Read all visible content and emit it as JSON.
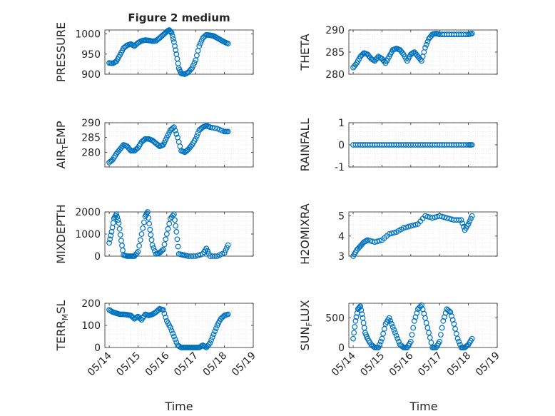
{
  "figure": {
    "title": "Figure 2 medium",
    "xlabel": "Time"
  },
  "style": {
    "marker_color": "#0072BD",
    "axis_color": "#262626",
    "grid_color": "#d9d9d9"
  },
  "chart_data": [
    {
      "type": "scatter",
      "ylabel": "PRESSURE",
      "ylabel_sub": "",
      "ylim": [
        900,
        1010
      ],
      "yticks": [
        "900",
        "950",
        "1000"
      ],
      "ytick_values": [
        900,
        950,
        1000
      ],
      "xlim": [
        "05/14",
        "05/18"
      ],
      "x": [
        "05/14 00:00",
        "05/14 03:00",
        "05/14 06:00",
        "05/14 09:00",
        "05/14 12:00",
        "05/14 15:00",
        "05/14 18:00",
        "05/14 21:00",
        "05/15 00:00",
        "05/15 03:00",
        "05/15 06:00",
        "05/15 09:00",
        "05/15 12:00",
        "05/15 15:00",
        "05/15 18:00",
        "05/15 21:00",
        "05/16 00:00",
        "05/16 02:00",
        "05/16 04:00",
        "05/16 06:00",
        "05/16 08:00",
        "05/16 10:00",
        "05/16 12:00",
        "05/16 15:00",
        "05/16 18:00",
        "05/16 21:00",
        "05/17 00:00",
        "05/17 03:00",
        "05/17 06:00",
        "05/17 09:00",
        "05/17 12:00",
        "05/17 15:00",
        "05/17 18:00",
        "05/17 21:00",
        "05/18 00:00",
        "05/18 03:00"
      ],
      "y": [
        928,
        927,
        932,
        948,
        965,
        972,
        975,
        970,
        978,
        983,
        985,
        984,
        982,
        983,
        990,
        998,
        1006,
        1010,
        1003,
        980,
        950,
        915,
        902,
        900,
        905,
        915,
        935,
        970,
        990,
        998,
        997,
        995,
        990,
        985,
        980,
        976
      ]
    },
    {
      "type": "scatter",
      "ylabel": "THETA",
      "ylabel_sub": "",
      "ylim": [
        280,
        290
      ],
      "yticks": [
        "280",
        "285",
        "290"
      ],
      "ytick_values": [
        280,
        285,
        290
      ],
      "xlim": [
        "05/14",
        "05/19"
      ],
      "x": [
        "05/14 00:00",
        "05/14 03:00",
        "05/14 06:00",
        "05/14 09:00",
        "05/14 12:00",
        "05/14 15:00",
        "05/14 18:00",
        "05/14 21:00",
        "05/15 00:00",
        "05/15 03:00",
        "05/15 06:00",
        "05/15 09:00",
        "05/15 12:00",
        "05/15 15:00",
        "05/15 18:00",
        "05/15 21:00",
        "05/16 00:00",
        "05/16 03:00",
        "05/16 06:00",
        "05/16 09:00",
        "05/16 12:00",
        "05/16 15:00",
        "05/16 18:00",
        "05/16 21:00",
        "05/17 00:00",
        "05/17 06:00",
        "05/17 12:00",
        "05/17 18:00",
        "05/18 00:00",
        "05/18 03:00"
      ],
      "y": [
        281.5,
        282.5,
        284,
        284.8,
        284.5,
        283.5,
        283,
        284,
        283.5,
        282.5,
        284,
        285.5,
        285.8,
        285.5,
        284.5,
        283,
        284.5,
        285,
        284,
        283,
        286,
        288,
        289,
        289.2,
        289,
        289,
        289,
        289,
        289,
        289.2
      ]
    },
    {
      "type": "scatter",
      "ylabel": "AIR",
      "ylabel_sub": "T",
      "ylabel_rest": "EMP",
      "ylim": [
        275,
        290
      ],
      "yticks": [
        "280",
        "285",
        "290"
      ],
      "ytick_values": [
        280,
        285,
        290
      ],
      "xlim": [
        "05/14",
        "05/18"
      ],
      "x": [
        "05/14 00:00",
        "05/14 03:00",
        "05/14 06:00",
        "05/14 09:00",
        "05/14 12:00",
        "05/14 15:00",
        "05/14 18:00",
        "05/14 21:00",
        "05/15 00:00",
        "05/15 03:00",
        "05/15 06:00",
        "05/15 09:00",
        "05/15 12:00",
        "05/15 15:00",
        "05/15 18:00",
        "05/15 21:00",
        "05/16 00:00",
        "05/16 03:00",
        "05/16 06:00",
        "05/16 09:00",
        "05/16 12:00",
        "05/16 15:00",
        "05/16 18:00",
        "05/16 21:00",
        "05/17 00:00",
        "05/17 03:00",
        "05/17 06:00",
        "05/17 09:00",
        "05/17 12:00",
        "05/17 18:00",
        "05/18 00:00",
        "05/18 03:00"
      ],
      "y": [
        276.5,
        277.5,
        279.5,
        281,
        282.5,
        282,
        280.5,
        280.5,
        281.5,
        283.5,
        284.5,
        284.5,
        284,
        283,
        282,
        282.5,
        285,
        287.5,
        288.5,
        285,
        280.5,
        280,
        281,
        282.5,
        284.5,
        287.5,
        288.5,
        289,
        288.5,
        288,
        287,
        287
      ]
    },
    {
      "type": "scatter",
      "ylabel": "RAINFALL",
      "ylabel_sub": "",
      "ylim": [
        -1,
        1
      ],
      "yticks": [
        "-1",
        "0",
        "1"
      ],
      "ytick_values": [
        -1,
        0,
        1
      ],
      "xlim": [
        "05/14",
        "05/19"
      ],
      "x": [
        "05/14 00:00",
        "05/14 06:00",
        "05/14 12:00",
        "05/14 18:00",
        "05/15 00:00",
        "05/15 06:00",
        "05/15 12:00",
        "05/15 18:00",
        "05/16 00:00",
        "05/16 06:00",
        "05/16 12:00",
        "05/16 18:00",
        "05/17 00:00",
        "05/17 06:00",
        "05/17 12:00",
        "05/17 18:00",
        "05/18 00:00",
        "05/18 03:00"
      ],
      "y": [
        0,
        0,
        0,
        0,
        0,
        0,
        0,
        0,
        0,
        0,
        0,
        0,
        0,
        0,
        0,
        0,
        0,
        0
      ]
    },
    {
      "type": "scatter",
      "ylabel": "MIXDEPTH",
      "ylabel_sub": "",
      "ylim": [
        0,
        2000
      ],
      "yticks": [
        "0",
        "1000",
        "2000"
      ],
      "ytick_values": [
        0,
        1000,
        2000
      ],
      "xlim": [
        "05/14",
        "05/18"
      ],
      "x": [
        "05/14 00:00",
        "05/14 02:00",
        "05/14 04:00",
        "05/14 06:00",
        "05/14 08:00",
        "05/14 10:00",
        "05/14 12:00",
        "05/14 15:00",
        "05/14 18:00",
        "05/14 21:00",
        "05/15 00:00",
        "05/15 03:00",
        "05/15 06:00",
        "05/15 08:00",
        "05/15 10:00",
        "05/15 12:00",
        "05/15 15:00",
        "05/15 18:00",
        "05/15 21:00",
        "05/16 00:00",
        "05/16 03:00",
        "05/16 06:00",
        "05/16 08:00",
        "05/16 10:00",
        "05/16 14:00",
        "05/16 18:00",
        "05/17 00:00",
        "05/17 06:00",
        "05/17 09:00",
        "05/17 12:00",
        "05/17 18:00",
        "05/18 00:00",
        "05/18 03:00"
      ],
      "y": [
        600,
        1100,
        1700,
        1900,
        1500,
        700,
        50,
        0,
        0,
        0,
        200,
        1000,
        1800,
        2000,
        1200,
        500,
        100,
        150,
        300,
        1000,
        1700,
        1900,
        1100,
        100,
        50,
        0,
        0,
        100,
        350,
        0,
        0,
        150,
        500
      ]
    },
    {
      "type": "scatter",
      "ylabel": "H2OMIXRA",
      "ylabel_sub": "",
      "ylim": [
        3,
        5.2
      ],
      "yticks": [
        "3",
        "4",
        "5"
      ],
      "ytick_values": [
        3,
        4,
        5
      ],
      "xlim": [
        "05/14",
        "05/19"
      ],
      "x": [
        "05/14 00:00",
        "05/14 03:00",
        "05/14 06:00",
        "05/14 09:00",
        "05/14 12:00",
        "05/14 18:00",
        "05/15 00:00",
        "05/15 06:00",
        "05/15 12:00",
        "05/15 18:00",
        "05/16 00:00",
        "05/16 06:00",
        "05/16 12:00",
        "05/16 18:00",
        "05/17 00:00",
        "05/17 06:00",
        "05/17 12:00",
        "05/17 18:00",
        "05/17 21:00",
        "05/18 00:00",
        "05/18 03:00"
      ],
      "y": [
        3,
        3.3,
        3.5,
        3.7,
        3.8,
        3.7,
        3.8,
        4.1,
        4.2,
        4.4,
        4.5,
        4.6,
        5,
        4.9,
        5,
        4.9,
        4.8,
        4.8,
        4.3,
        4.6,
        5
      ]
    },
    {
      "type": "scatter",
      "ylabel": "TERR",
      "ylabel_sub": "M",
      "ylabel_rest": "SL",
      "ylim": [
        0,
        200
      ],
      "yticks": [
        "0",
        "100",
        "200"
      ],
      "ytick_values": [
        0,
        100,
        200
      ],
      "xlim": [
        "05/14",
        "05/19"
      ],
      "x": [
        "05/14 00:00",
        "05/14 03:00",
        "05/14 06:00",
        "05/14 09:00",
        "05/14 12:00",
        "05/14 15:00",
        "05/14 18:00",
        "05/14 21:00",
        "05/15 00:00",
        "05/15 03:00",
        "05/15 06:00",
        "05/15 09:00",
        "05/15 12:00",
        "05/15 15:00",
        "05/15 18:00",
        "05/15 21:00",
        "05/16 00:00",
        "05/16 03:00",
        "05/16 06:00",
        "05/16 09:00",
        "05/16 12:00",
        "05/16 15:00",
        "05/16 18:00",
        "05/16 21:00",
        "05/17 00:00",
        "05/17 03:00",
        "05/17 06:00",
        "05/17 09:00",
        "05/17 12:00",
        "05/17 15:00",
        "05/17 18:00",
        "05/17 21:00",
        "05/18 00:00",
        "05/18 03:00"
      ],
      "y": [
        170,
        160,
        155,
        150,
        150,
        148,
        145,
        130,
        140,
        125,
        150,
        145,
        150,
        160,
        175,
        170,
        120,
        90,
        50,
        10,
        0,
        0,
        0,
        0,
        0,
        0,
        10,
        0,
        20,
        60,
        100,
        130,
        145,
        150
      ]
    },
    {
      "type": "scatter",
      "ylabel": "SUN",
      "ylabel_sub": "F",
      "ylabel_rest": "LUX",
      "ylim": [
        0,
        750
      ],
      "yticks": [
        "0",
        "500"
      ],
      "ytick_values": [
        0,
        500
      ],
      "xlim": [
        "05/14",
        "05/19"
      ],
      "x": [
        "05/14 00:00",
        "05/14 02:00",
        "05/14 04:00",
        "05/14 06:00",
        "05/14 08:00",
        "05/14 10:00",
        "05/14 12:00",
        "05/14 15:00",
        "05/14 18:00",
        "05/14 21:00",
        "05/15 00:00",
        "05/15 03:00",
        "05/15 06:00",
        "05/15 09:00",
        "05/15 12:00",
        "05/15 15:00",
        "05/15 18:00",
        "05/15 21:00",
        "05/16 00:00",
        "05/16 03:00",
        "05/16 06:00",
        "05/16 09:00",
        "05/16 12:00",
        "05/16 15:00",
        "05/16 18:00",
        "05/16 21:00",
        "05/17 00:00",
        "05/17 03:00",
        "05/17 06:00",
        "05/17 09:00",
        "05/17 12:00",
        "05/17 15:00",
        "05/17 18:00",
        "05/17 21:00",
        "05/18 00:00",
        "05/18 03:00"
      ],
      "y": [
        150,
        450,
        650,
        700,
        500,
        250,
        150,
        50,
        0,
        0,
        150,
        400,
        500,
        350,
        200,
        50,
        0,
        0,
        100,
        450,
        650,
        720,
        500,
        250,
        0,
        0,
        100,
        450,
        650,
        600,
        400,
        150,
        0,
        0,
        50,
        150
      ]
    }
  ]
}
